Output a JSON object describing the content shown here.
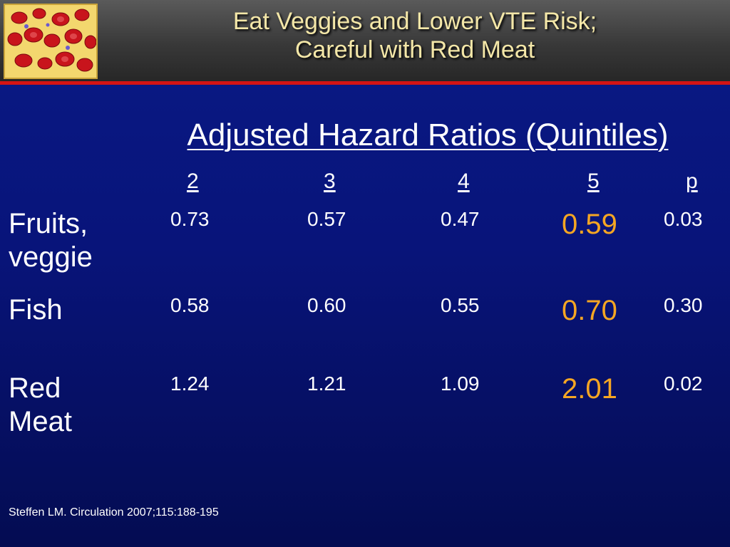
{
  "slide": {
    "title_line1": "Eat Veggies and Lower VTE Risk;",
    "title_line2": "Careful with Red Meat",
    "heading": "Adjusted Hazard Ratios (Quintiles)",
    "columns": [
      "2",
      "3",
      "4",
      "5",
      "p"
    ],
    "rows": [
      {
        "label_line1": "Fruits,",
        "label_line2": "veggie",
        "values": [
          "0.73",
          "0.57",
          "0.47",
          "0.59",
          "0.03"
        ]
      },
      {
        "label_line1": "Fish",
        "label_line2": "",
        "values": [
          "0.58",
          "0.60",
          "0.55",
          "0.70",
          "0.30"
        ]
      },
      {
        "label_line1": "Red",
        "label_line2": "Meat",
        "values": [
          "1.24",
          "1.21",
          "1.09",
          "2.01",
          "0.02"
        ]
      }
    ],
    "citation": "Steffen LM. Circulation 2007;115:188-195"
  },
  "colors": {
    "background": "#0a1a86",
    "title_text": "#f4e7a8",
    "highlight": "#f5a623",
    "header_rule": "#d41414"
  },
  "icons": {
    "logo": "red-blood-cells-image"
  }
}
